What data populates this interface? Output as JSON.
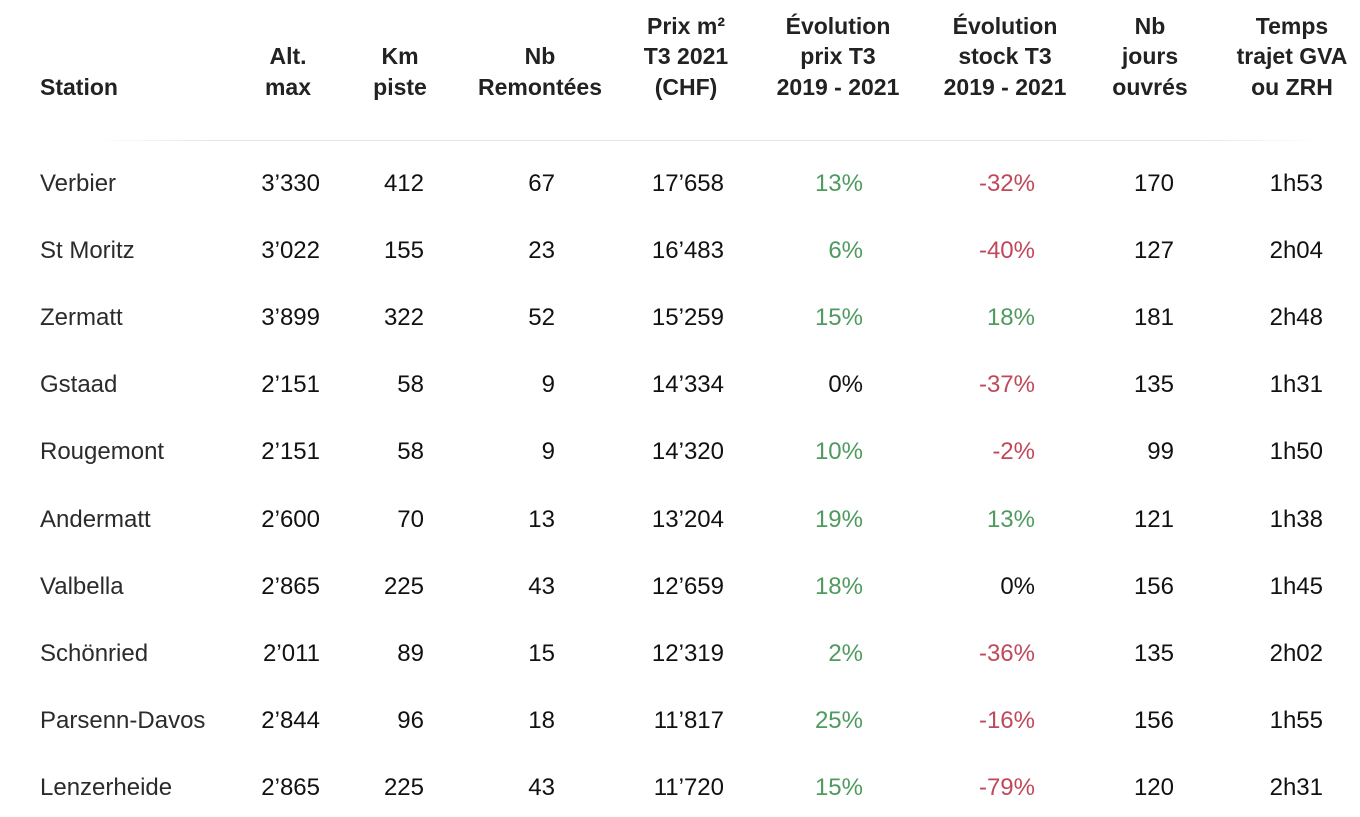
{
  "colors": {
    "positive": "#4e9a5f",
    "negative": "#c0485a",
    "neutral": "#111111"
  },
  "headers": [
    {
      "key": "station",
      "lines": [
        "Station"
      ]
    },
    {
      "key": "alt_max",
      "lines": [
        "Alt.",
        "max"
      ]
    },
    {
      "key": "km_piste",
      "lines": [
        "Km",
        "piste"
      ]
    },
    {
      "key": "nb_remontees",
      "lines": [
        "Nb",
        "Remontées"
      ]
    },
    {
      "key": "prix_m2",
      "lines": [
        "Prix m²",
        "T3 2021",
        "(CHF)"
      ]
    },
    {
      "key": "evol_prix",
      "lines": [
        "Évolution",
        "prix T3",
        "2019 - 2021"
      ]
    },
    {
      "key": "evol_stock",
      "lines": [
        "Évolution",
        "stock T3",
        "2019 - 2021"
      ]
    },
    {
      "key": "nb_jours",
      "lines": [
        "Nb",
        "jours",
        "ouvrés"
      ]
    },
    {
      "key": "temps_trajet",
      "lines": [
        "Temps",
        "trajet GVA",
        "ou ZRH"
      ]
    }
  ],
  "rows": [
    {
      "station": "Verbier",
      "alt_max": "3’330",
      "km_piste": "412",
      "nb_remontees": "67",
      "prix_m2": "17’658",
      "evol_prix": "13%",
      "evol_stock": "-32%",
      "nb_jours": "170",
      "temps_trajet": "1h53"
    },
    {
      "station": "St Moritz",
      "alt_max": "3’022",
      "km_piste": "155",
      "nb_remontees": "23",
      "prix_m2": "16’483",
      "evol_prix": "6%",
      "evol_stock": "-40%",
      "nb_jours": "127",
      "temps_trajet": "2h04"
    },
    {
      "station": "Zermatt",
      "alt_max": "3’899",
      "km_piste": "322",
      "nb_remontees": "52",
      "prix_m2": "15’259",
      "evol_prix": "15%",
      "evol_stock": "18%",
      "nb_jours": "181",
      "temps_trajet": "2h48"
    },
    {
      "station": "Gstaad",
      "alt_max": "2’151",
      "km_piste": "58",
      "nb_remontees": "9",
      "prix_m2": "14’334",
      "evol_prix": "0%",
      "evol_stock": "-37%",
      "nb_jours": "135",
      "temps_trajet": "1h31"
    },
    {
      "station": "Rougemont",
      "alt_max": "2’151",
      "km_piste": "58",
      "nb_remontees": "9",
      "prix_m2": "14’320",
      "evol_prix": "10%",
      "evol_stock": "-2%",
      "nb_jours": "99",
      "temps_trajet": "1h50"
    },
    {
      "station": "Andermatt",
      "alt_max": "2’600",
      "km_piste": "70",
      "nb_remontees": "13",
      "prix_m2": "13’204",
      "evol_prix": "19%",
      "evol_stock": "13%",
      "nb_jours": "121",
      "temps_trajet": "1h38"
    },
    {
      "station": "Valbella",
      "alt_max": "2’865",
      "km_piste": "225",
      "nb_remontees": "43",
      "prix_m2": "12’659",
      "evol_prix": "18%",
      "evol_stock": "0%",
      "nb_jours": "156",
      "temps_trajet": "1h45"
    },
    {
      "station": "Schönried",
      "alt_max": "2’011",
      "km_piste": "89",
      "nb_remontees": "15",
      "prix_m2": "12’319",
      "evol_prix": "2%",
      "evol_stock": "-36%",
      "nb_jours": "135",
      "temps_trajet": "2h02"
    },
    {
      "station": "Parsenn-Davos",
      "alt_max": "2’844",
      "km_piste": "96",
      "nb_remontees": "18",
      "prix_m2": "11’817",
      "evol_prix": "25%",
      "evol_stock": "-16%",
      "nb_jours": "156",
      "temps_trajet": "1h55"
    },
    {
      "station": "Lenzerheide",
      "alt_max": "2’865",
      "km_piste": "225",
      "nb_remontees": "43",
      "prix_m2": "11’720",
      "evol_prix": "15%",
      "evol_stock": "-79%",
      "nb_jours": "120",
      "temps_trajet": "2h31"
    }
  ]
}
